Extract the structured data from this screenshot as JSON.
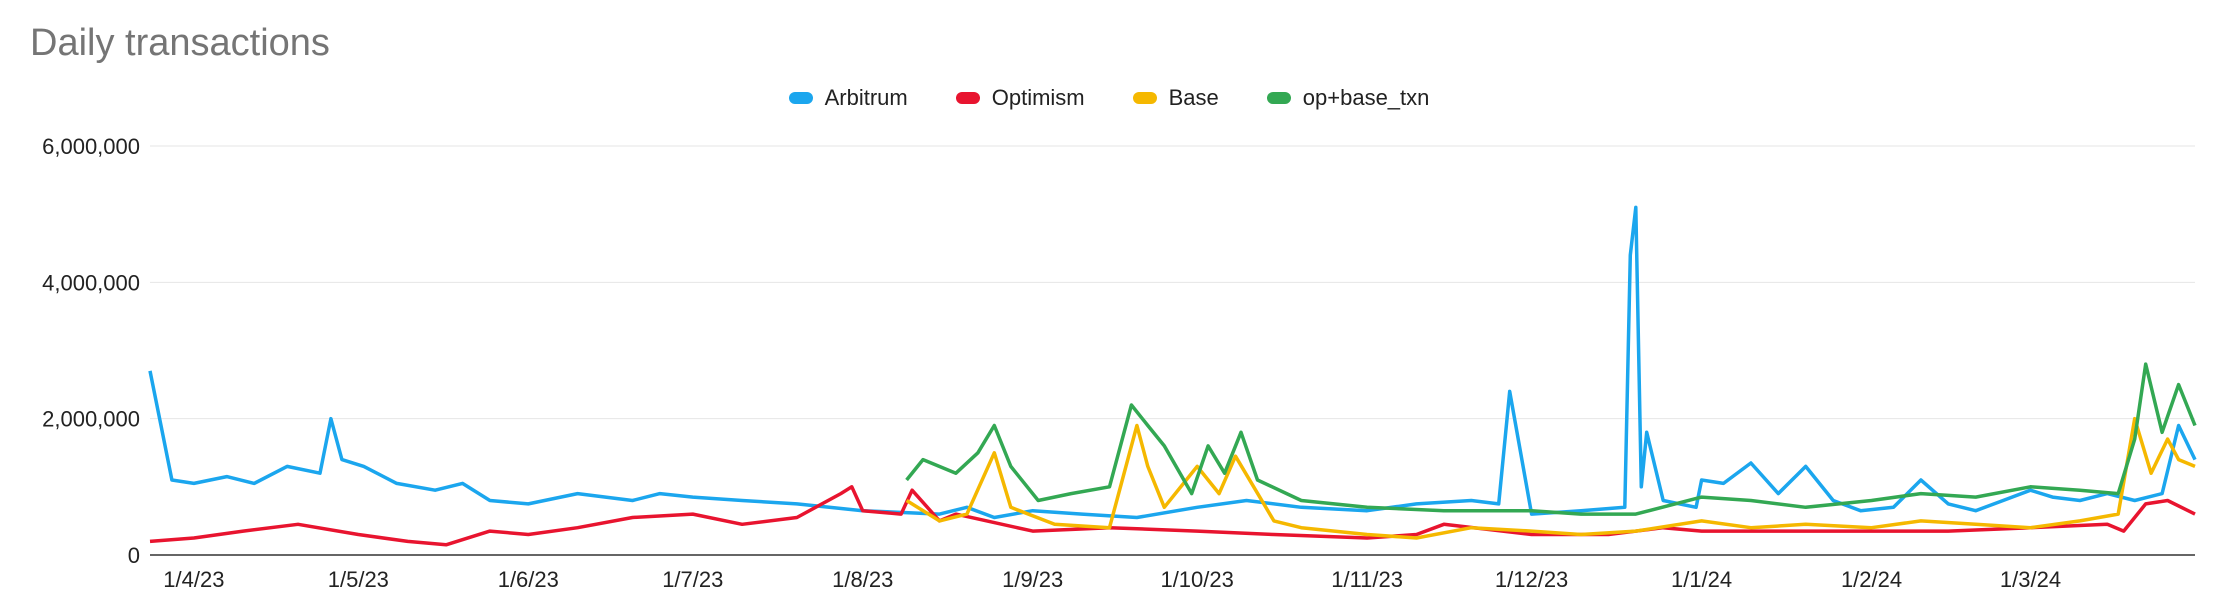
{
  "title": "Daily transactions",
  "colors": {
    "Arbitrum": "#1ba6ee",
    "Optimism": "#e8142f",
    "Base": "#f5b800",
    "op+base_txn": "#33a853"
  },
  "chart_data": {
    "type": "line",
    "title": "Daily transactions",
    "xlabel": "",
    "ylabel": "",
    "ylim": [
      0,
      6000000
    ],
    "yticks": [
      "0",
      "2,000,000",
      "4,000,000",
      "6,000,000"
    ],
    "ytick_values": [
      0,
      2000000,
      4000000,
      6000000
    ],
    "xticks": [
      "1/4/23",
      "1/5/23",
      "1/6/23",
      "1/7/23",
      "1/8/23",
      "1/9/23",
      "1/10/23",
      "1/11/23",
      "1/12/23",
      "1/1/24",
      "1/2/24",
      "1/3/24"
    ],
    "xtick_dates": [
      "2023-04-01",
      "2023-05-01",
      "2023-06-01",
      "2023-07-01",
      "2023-08-01",
      "2023-09-01",
      "2023-10-01",
      "2023-11-01",
      "2023-12-01",
      "2024-01-01",
      "2024-02-01",
      "2024-03-01"
    ],
    "x_range": [
      "2023-03-24",
      "2024-03-31"
    ],
    "grid": true,
    "legend": "top-center",
    "series": [
      {
        "name": "Arbitrum",
        "x": [
          "2023-03-24",
          "2023-03-26",
          "2023-03-28",
          "2023-04-01",
          "2023-04-07",
          "2023-04-12",
          "2023-04-18",
          "2023-04-24",
          "2023-04-26",
          "2023-04-28",
          "2023-05-02",
          "2023-05-08",
          "2023-05-15",
          "2023-05-20",
          "2023-05-25",
          "2023-06-01",
          "2023-06-10",
          "2023-06-20",
          "2023-06-25",
          "2023-07-01",
          "2023-07-10",
          "2023-07-20",
          "2023-08-01",
          "2023-08-15",
          "2023-08-20",
          "2023-08-25",
          "2023-09-01",
          "2023-09-10",
          "2023-09-20",
          "2023-10-01",
          "2023-10-10",
          "2023-10-20",
          "2023-11-01",
          "2023-11-10",
          "2023-11-20",
          "2023-11-25",
          "2023-11-27",
          "2023-12-01",
          "2023-12-10",
          "2023-12-18",
          "2023-12-19",
          "2023-12-20",
          "2023-12-21",
          "2023-12-22",
          "2023-12-25",
          "2023-12-31",
          "2024-01-01",
          "2024-01-05",
          "2024-01-10",
          "2024-01-15",
          "2024-01-20",
          "2024-01-25",
          "2024-01-30",
          "2024-02-05",
          "2024-02-10",
          "2024-02-15",
          "2024-02-20",
          "2024-02-25",
          "2024-03-01",
          "2024-03-05",
          "2024-03-10",
          "2024-03-15",
          "2024-03-20",
          "2024-03-25",
          "2024-03-28",
          "2024-03-31"
        ],
        "values": [
          2700000,
          1900000,
          1100000,
          1050000,
          1150000,
          1050000,
          1300000,
          1200000,
          2000000,
          1400000,
          1300000,
          1050000,
          950000,
          1050000,
          800000,
          750000,
          900000,
          800000,
          900000,
          850000,
          800000,
          750000,
          650000,
          600000,
          700000,
          550000,
          650000,
          600000,
          550000,
          700000,
          800000,
          700000,
          650000,
          750000,
          800000,
          750000,
          2400000,
          600000,
          650000,
          700000,
          4400000,
          5100000,
          1000000,
          1800000,
          800000,
          700000,
          1100000,
          1050000,
          1350000,
          900000,
          1300000,
          800000,
          650000,
          700000,
          1100000,
          750000,
          650000,
          800000,
          950000,
          850000,
          800000,
          900000,
          800000,
          900000,
          1900000,
          1400000
        ]
      },
      {
        "name": "Optimism",
        "x": [
          "2023-03-24",
          "2023-04-01",
          "2023-04-10",
          "2023-04-20",
          "2023-05-01",
          "2023-05-10",
          "2023-05-17",
          "2023-05-25",
          "2023-06-01",
          "2023-06-10",
          "2023-06-20",
          "2023-07-01",
          "2023-07-10",
          "2023-07-20",
          "2023-07-28",
          "2023-07-30",
          "2023-08-01",
          "2023-08-08",
          "2023-08-10",
          "2023-08-15",
          "2023-08-18",
          "2023-09-01",
          "2023-09-15",
          "2023-10-01",
          "2023-10-15",
          "2023-11-01",
          "2023-11-10",
          "2023-11-15",
          "2023-12-01",
          "2023-12-15",
          "2023-12-25",
          "2024-01-01",
          "2024-01-15",
          "2024-02-01",
          "2024-02-15",
          "2024-03-01",
          "2024-03-15",
          "2024-03-18",
          "2024-03-22",
          "2024-03-26",
          "2024-03-31"
        ],
        "values": [
          200000,
          250000,
          350000,
          450000,
          300000,
          200000,
          150000,
          350000,
          300000,
          400000,
          550000,
          600000,
          450000,
          550000,
          900000,
          1000000,
          650000,
          600000,
          950000,
          500000,
          600000,
          350000,
          400000,
          350000,
          300000,
          250000,
          300000,
          450000,
          300000,
          300000,
          400000,
          350000,
          350000,
          350000,
          350000,
          400000,
          450000,
          350000,
          750000,
          800000,
          600000
        ]
      },
      {
        "name": "Base",
        "x": [
          "2023-08-09",
          "2023-08-15",
          "2023-08-20",
          "2023-08-25",
          "2023-08-28",
          "2023-09-05",
          "2023-09-15",
          "2023-09-20",
          "2023-09-22",
          "2023-09-25",
          "2023-10-01",
          "2023-10-05",
          "2023-10-08",
          "2023-10-15",
          "2023-10-20",
          "2023-11-01",
          "2023-11-10",
          "2023-11-20",
          "2023-12-01",
          "2023-12-10",
          "2023-12-20",
          "2024-01-01",
          "2024-01-10",
          "2024-01-20",
          "2024-02-01",
          "2024-02-10",
          "2024-02-20",
          "2024-03-01",
          "2024-03-10",
          "2024-03-17",
          "2024-03-20",
          "2024-03-23",
          "2024-03-26",
          "2024-03-28",
          "2024-03-31"
        ],
        "values": [
          800000,
          500000,
          600000,
          1500000,
          700000,
          450000,
          400000,
          1900000,
          1300000,
          700000,
          1300000,
          900000,
          1450000,
          500000,
          400000,
          300000,
          250000,
          400000,
          350000,
          300000,
          350000,
          500000,
          400000,
          450000,
          400000,
          500000,
          450000,
          400000,
          500000,
          600000,
          2000000,
          1200000,
          1700000,
          1400000,
          1300000
        ]
      },
      {
        "name": "op+base_txn",
        "x": [
          "2023-08-09",
          "2023-08-12",
          "2023-08-18",
          "2023-08-22",
          "2023-08-25",
          "2023-08-28",
          "2023-09-02",
          "2023-09-08",
          "2023-09-15",
          "2023-09-19",
          "2023-09-22",
          "2023-09-25",
          "2023-09-30",
          "2023-10-03",
          "2023-10-06",
          "2023-10-09",
          "2023-10-12",
          "2023-10-20",
          "2023-11-01",
          "2023-11-15",
          "2023-12-01",
          "2023-12-10",
          "2023-12-20",
          "2024-01-01",
          "2024-01-10",
          "2024-01-20",
          "2024-02-01",
          "2024-02-10",
          "2024-02-20",
          "2024-03-01",
          "2024-03-10",
          "2024-03-17",
          "2024-03-20",
          "2024-03-22",
          "2024-03-25",
          "2024-03-28",
          "2024-03-31"
        ],
        "values": [
          1100000,
          1400000,
          1200000,
          1500000,
          1900000,
          1300000,
          800000,
          900000,
          1000000,
          2200000,
          1900000,
          1600000,
          900000,
          1600000,
          1200000,
          1800000,
          1100000,
          800000,
          700000,
          650000,
          650000,
          600000,
          600000,
          850000,
          800000,
          700000,
          800000,
          900000,
          850000,
          1000000,
          950000,
          900000,
          1700000,
          2800000,
          1800000,
          2500000,
          1900000
        ]
      }
    ]
  }
}
